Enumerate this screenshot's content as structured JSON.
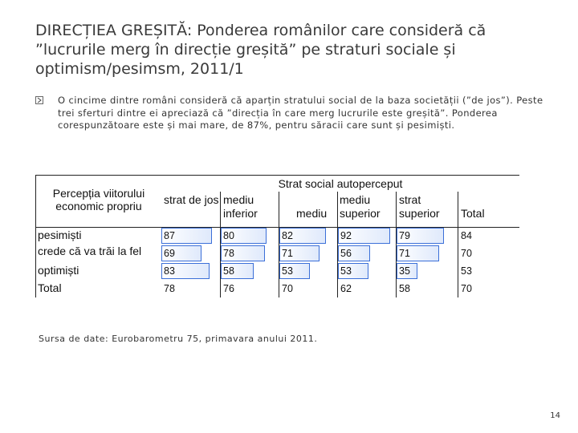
{
  "slide": {
    "title": "DIRECȚIEA GREȘITĂ: Ponderea românilor care consideră că ”lucrurile merg în direcție greșită” pe straturi sociale și optimism/pesimsm, 2011/1",
    "bullet": "O cincime dintre români consideră că aparțin stratului social de la baza societății (”de jos”). Peste trei sferturi dintre ei apreciază că ”direcția în care merg lucrurile este greșită”. Ponderea corespunzătoare este și mai mare, de 87%, pentru săracii care sunt și pesimiști.",
    "source": "Sursa de date: Eurobarometru 75, primavara anului 2011.",
    "page_number": "14",
    "bar_color": "#3b6fd8"
  },
  "table": {
    "corner_header": "Percepția viitorului economic propriu",
    "group_header": "Strat social autoperceput",
    "columns": [
      "strat de jos",
      "mediu inferior",
      "mediu",
      "mediu superior",
      "strat superior",
      "Total"
    ],
    "rows": [
      {
        "label": "pesimiști",
        "values": [
          "87",
          "80",
          "82",
          "92",
          "79",
          "84"
        ]
      },
      {
        "label": "crede că va trăi la fel",
        "values": [
          "69",
          "78",
          "71",
          "56",
          "71",
          "70"
        ]
      },
      {
        "label": "optimiști",
        "values": [
          "83",
          "58",
          "53",
          "53",
          "35",
          "53"
        ]
      },
      {
        "label": "Total",
        "values": [
          "78",
          "76",
          "70",
          "62",
          "58",
          "70"
        ]
      }
    ],
    "bar_rows": [
      0,
      1,
      2
    ]
  }
}
